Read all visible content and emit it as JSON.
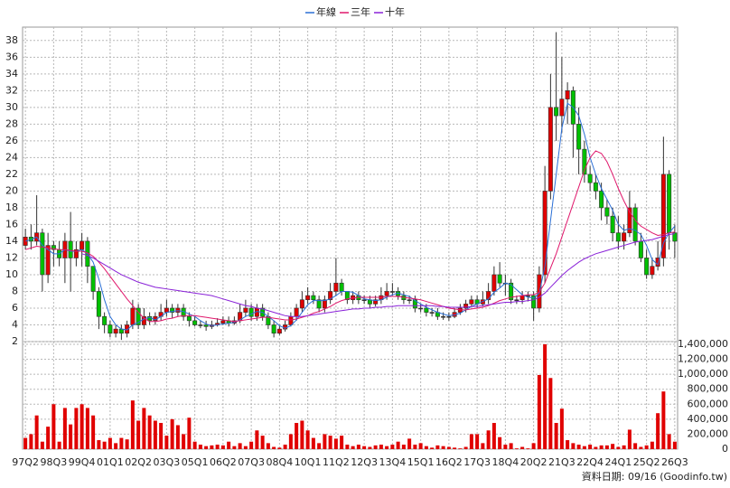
{
  "chart_data": [
    {
      "type": "candlestick",
      "grid": true,
      "legend": "top",
      "up_color": "#e00000",
      "down_color": "#00c000",
      "ylim": [
        2,
        39.6
      ],
      "yticks": [
        2,
        4,
        6,
        8,
        10,
        12,
        14,
        16,
        18,
        20,
        22,
        24,
        26,
        28,
        30,
        32,
        34,
        36,
        38
      ],
      "open": [
        13.5,
        14.5,
        14,
        15,
        10,
        13.5,
        13,
        12,
        14,
        12,
        13,
        14,
        11,
        8,
        5,
        4,
        3,
        3.5,
        3,
        4,
        6,
        4,
        5,
        4.5,
        5,
        5.5,
        6,
        5.5,
        6,
        5,
        4.5,
        4,
        4,
        3.8,
        4,
        4.2,
        4.5,
        4.2,
        4.5,
        5.5,
        6,
        5,
        6,
        5,
        4,
        3,
        3.5,
        4,
        5,
        6,
        7,
        7.5,
        7,
        6,
        7,
        8,
        9,
        8,
        7,
        7.5,
        7,
        7,
        6.5,
        7,
        7.5,
        8,
        8,
        7.5,
        7,
        7,
        6,
        6,
        5.5,
        5.5,
        5,
        5,
        5,
        5.5,
        6,
        6.5,
        7,
        6.5,
        7,
        8,
        10,
        9,
        9,
        7,
        7,
        7.5,
        7.5,
        6,
        10,
        20,
        30,
        29,
        31,
        32,
        28,
        25,
        22,
        21,
        20,
        18,
        17,
        15,
        14,
        15,
        18,
        14,
        12,
        10,
        11,
        12,
        22,
        15
      ],
      "high": [
        15.5,
        16,
        19.5,
        15.5,
        15,
        14,
        14,
        15,
        17.5,
        14,
        15,
        14.5,
        11,
        8.5,
        5.5,
        4.5,
        4,
        4,
        4.5,
        7,
        6.5,
        6,
        5.5,
        5.5,
        6.5,
        7,
        6.5,
        6.5,
        6.5,
        5.5,
        5,
        4.5,
        4.5,
        4.5,
        4.8,
        5,
        5,
        5,
        6.5,
        7,
        6.5,
        6.5,
        6.5,
        5.5,
        4.5,
        4,
        4.5,
        5.5,
        6.5,
        8,
        8.5,
        8,
        7.5,
        7.5,
        9,
        12,
        9.5,
        8,
        8,
        8,
        7.5,
        7.5,
        7.5,
        8.5,
        9,
        9,
        8.5,
        8,
        7.5,
        7.5,
        6.5,
        6.5,
        6,
        6,
        5.5,
        5.5,
        6,
        6.5,
        7,
        7.5,
        7.5,
        8,
        9,
        11,
        11.5,
        10,
        9.5,
        7.5,
        8,
        8,
        8,
        11,
        23,
        34,
        39,
        36,
        33,
        32.5,
        30,
        26,
        23,
        22,
        21,
        19,
        18,
        17,
        16,
        20,
        18.5,
        15,
        13,
        12,
        14,
        26.5,
        22.5,
        16
      ],
      "low": [
        13,
        13,
        13.5,
        8,
        9,
        11,
        11,
        9,
        8,
        11,
        11,
        9,
        7,
        3.5,
        3,
        2.5,
        2.5,
        2.2,
        2.5,
        3.5,
        3.5,
        3.5,
        4,
        4,
        4.5,
        5,
        4.8,
        5,
        4.5,
        3.8,
        3.8,
        3.6,
        3.3,
        3.5,
        3.8,
        4,
        3.8,
        4,
        4.2,
        5,
        4.5,
        4.5,
        4.5,
        3.5,
        2.5,
        2.8,
        3.2,
        3.8,
        4.5,
        5.5,
        6.5,
        6.5,
        5.5,
        5.5,
        6.5,
        7.5,
        7.5,
        6.5,
        6.5,
        6.5,
        6.5,
        6,
        6.2,
        6.5,
        7,
        7.5,
        7,
        6.5,
        6.5,
        5.5,
        5.5,
        5,
        5,
        4.6,
        4.6,
        4.5,
        4.8,
        5.2,
        5.5,
        6.2,
        6,
        6.2,
        6.5,
        7.5,
        8.5,
        7.5,
        6.5,
        6.5,
        6.5,
        6.8,
        4.5,
        5.5,
        9,
        19,
        26,
        27,
        28,
        24,
        22,
        21,
        20,
        19,
        16.5,
        16,
        14,
        13,
        13,
        14.5,
        13.5,
        11.5,
        9.5,
        9.5,
        10.5,
        11,
        13,
        12
      ],
      "close": [
        14.5,
        14,
        15,
        10,
        13.5,
        13,
        12,
        14,
        12,
        13,
        14,
        11,
        8,
        5,
        4,
        3,
        3.5,
        3,
        4,
        6,
        4,
        5,
        4.5,
        5,
        5.5,
        6,
        5.5,
        6,
        5,
        4.5,
        4,
        4,
        3.8,
        4,
        4.2,
        4.5,
        4.2,
        4.5,
        5.5,
        6,
        5,
        6,
        5,
        4,
        3,
        3.5,
        4,
        5,
        6,
        7,
        7.5,
        7,
        6,
        7,
        8,
        9,
        8,
        7,
        7.5,
        7,
        7,
        6.5,
        7,
        7.5,
        8,
        8,
        7.5,
        7,
        7,
        6,
        6,
        5.5,
        5.5,
        5,
        5,
        5,
        5.5,
        6,
        6.5,
        7,
        6.5,
        7,
        8,
        10,
        9,
        9,
        7,
        7,
        7.5,
        7.5,
        6,
        10,
        20,
        30,
        29,
        31,
        32,
        28,
        25,
        22,
        21,
        20,
        18,
        17,
        15,
        14,
        15,
        18,
        14,
        12,
        10,
        11,
        12,
        22,
        15,
        14
      ],
      "series": [
        {
          "name": "年線",
          "color": "#2a6fd6",
          "values": [
            14,
            14.2,
            14.5,
            13.5,
            13,
            12.5,
            12.5,
            13,
            12.8,
            12.8,
            13,
            12.5,
            11.5,
            9.5,
            7,
            5,
            4,
            3.5,
            3.4,
            4,
            4.3,
            4.7,
            4.9,
            4.6,
            5,
            5.5,
            5.6,
            5.7,
            5.6,
            5.3,
            5,
            4.5,
            4.1,
            3.9,
            4,
            4.1,
            4.2,
            4.3,
            4.6,
            5,
            5.3,
            5.6,
            5.5,
            5,
            4.5,
            3.9,
            3.6,
            3.9,
            4.6,
            5.5,
            6.4,
            6.9,
            6.9,
            6.9,
            7.1,
            7.5,
            8,
            8,
            7.9,
            7.5,
            7.1,
            7,
            6.9,
            7,
            7.3,
            7.6,
            7.8,
            7.6,
            7.4,
            6.9,
            6.5,
            6.1,
            5.8,
            5.5,
            5.3,
            5.1,
            5.2,
            5.4,
            5.8,
            6.2,
            6.5,
            6.8,
            7.1,
            7.9,
            8.4,
            9,
            8.8,
            8.2,
            7.6,
            7.3,
            7.2,
            7.8,
            11,
            16.5,
            22,
            27.5,
            30.5,
            30,
            29,
            26.8,
            24,
            22,
            20.3,
            19,
            17.7,
            16,
            15.3,
            15.5,
            15.3,
            14.8,
            13.5,
            11.8,
            11.2,
            13.8,
            15,
            15.8
          ]
        },
        {
          "name": "三年",
          "color": "#e0186c",
          "values": [
            13,
            13.2,
            13.4,
            13.3,
            13.2,
            13.1,
            13,
            13,
            12.9,
            12.8,
            12.8,
            12.6,
            12.2,
            11.5,
            10.7,
            9.8,
            8.9,
            8,
            7.1,
            6.3,
            5.5,
            4.8,
            4.4,
            4.4,
            4.5,
            4.7,
            4.8,
            5,
            5.1,
            5.1,
            5.1,
            5,
            4.9,
            4.8,
            4.7,
            4.6,
            4.5,
            4.4,
            4.5,
            4.6,
            4.7,
            4.8,
            4.9,
            4.9,
            4.8,
            4.7,
            4.6,
            4.6,
            4.7,
            4.9,
            5.1,
            5.4,
            5.6,
            5.9,
            6.2,
            6.6,
            6.9,
            7.1,
            7.2,
            7.3,
            7.3,
            7.3,
            7.3,
            7.3,
            7.4,
            7.4,
            7.4,
            7.3,
            7.2,
            7.1,
            7,
            6.8,
            6.6,
            6.4,
            6.2,
            6,
            5.9,
            5.8,
            5.8,
            5.9,
            6,
            6.1,
            6.3,
            6.6,
            6.9,
            7.1,
            7.3,
            7.4,
            7.5,
            7.6,
            7.6,
            7.9,
            9,
            10.8,
            12.5,
            14.5,
            16.5,
            18.5,
            20.5,
            22.5,
            24,
            24.8,
            24.5,
            23.5,
            22,
            20.3,
            18.8,
            17.5,
            16.5,
            15.8,
            15.4,
            15,
            14.7,
            14.8,
            15,
            15.1
          ]
        },
        {
          "name": "十年",
          "color": "#8a22d8",
          "values": [
            null,
            null,
            null,
            null,
            null,
            null,
            null,
            null,
            null,
            null,
            12.5,
            12.3,
            12,
            11.6,
            11.2,
            10.8,
            10.4,
            10,
            9.7,
            9.4,
            9.1,
            8.9,
            8.7,
            8.5,
            8.4,
            8.3,
            8.2,
            8.1,
            8,
            7.9,
            7.8,
            7.7,
            7.6,
            7.5,
            7.3,
            7.1,
            6.9,
            6.7,
            6.5,
            6.3,
            6.2,
            6,
            5.9,
            5.7,
            5.5,
            5.3,
            5.1,
            5,
            5,
            5,
            5.1,
            5.2,
            5.3,
            5.4,
            5.5,
            5.6,
            5.7,
            5.8,
            5.9,
            5.9,
            6,
            6,
            6.1,
            6.1,
            6.2,
            6.2,
            6.3,
            6.3,
            6.3,
            6.3,
            6.3,
            6.3,
            6.3,
            6.2,
            6.2,
            6.1,
            6.1,
            6.1,
            6.1,
            6.2,
            6.2,
            6.3,
            6.4,
            6.5,
            6.6,
            6.7,
            6.7,
            6.8,
            6.8,
            6.9,
            7,
            7.3,
            7.8,
            8.5,
            9.2,
            9.9,
            10.5,
            11,
            11.5,
            11.9,
            12.2,
            12.5,
            12.7,
            12.9,
            13.1,
            13.3,
            13.5,
            13.7,
            13.9,
            14,
            14.1,
            14.2,
            14.4,
            14.6,
            14.8,
            14.9
          ]
        }
      ]
    },
    {
      "type": "bar",
      "grid": true,
      "color": "#e00000",
      "categories": [
        "97Q2",
        null,
        null,
        null,
        null,
        "98Q3",
        null,
        null,
        null,
        null,
        "99Q4",
        null,
        null,
        null,
        null,
        "01Q1",
        null,
        null,
        null,
        null,
        "02Q2",
        null,
        null,
        null,
        null,
        "03Q3",
        null,
        null,
        null,
        null,
        "05Q1",
        null,
        null,
        null,
        null,
        "06Q2",
        null,
        null,
        null,
        null,
        "07Q3",
        null,
        null,
        null,
        null,
        "08Q4",
        null,
        null,
        null,
        null,
        "10Q1",
        null,
        null,
        null,
        null,
        "11Q2",
        null,
        null,
        null,
        null,
        "12Q3",
        null,
        null,
        null,
        null,
        "13Q4",
        null,
        null,
        null,
        null,
        "15Q1",
        null,
        null,
        null,
        null,
        "16Q2",
        null,
        null,
        null,
        null,
        "17Q3",
        null,
        null,
        null,
        null,
        "18Q4",
        null,
        null,
        null,
        null,
        "20Q2",
        null,
        null,
        null,
        null,
        "21Q3",
        null,
        null,
        null,
        null,
        "22Q4",
        null,
        null,
        null,
        null,
        "24Q1",
        null,
        null,
        null,
        null,
        "25Q2",
        null,
        null,
        null,
        null,
        "26Q3"
      ],
      "values": [
        150000,
        200000,
        450000,
        100000,
        300000,
        600000,
        100000,
        550000,
        330000,
        550000,
        600000,
        550000,
        450000,
        120000,
        100000,
        150000,
        80000,
        150000,
        130000,
        650000,
        380000,
        550000,
        450000,
        380000,
        350000,
        180000,
        400000,
        320000,
        200000,
        420000,
        100000,
        60000,
        40000,
        50000,
        60000,
        50000,
        100000,
        40000,
        80000,
        40000,
        100000,
        250000,
        180000,
        80000,
        30000,
        20000,
        60000,
        200000,
        350000,
        380000,
        250000,
        150000,
        80000,
        200000,
        180000,
        140000,
        180000,
        60000,
        40000,
        60000,
        40000,
        30000,
        50000,
        60000,
        40000,
        60000,
        100000,
        60000,
        140000,
        60000,
        80000,
        40000,
        20000,
        50000,
        40000,
        30000,
        20000,
        10000,
        30000,
        200000,
        200000,
        80000,
        250000,
        350000,
        160000,
        60000,
        80000,
        10000,
        30000,
        10000,
        80000,
        990000,
        1400000,
        950000,
        350000,
        540000,
        120000,
        80000,
        60000,
        40000,
        60000,
        30000,
        50000,
        50000,
        70000,
        30000,
        50000,
        260000,
        80000,
        30000,
        50000,
        100000,
        480000,
        770000,
        200000,
        100000
      ],
      "ylim": [
        0,
        1436000
      ],
      "yticks": [
        0,
        {
          "value": 200000,
          "label": "200,000"
        },
        {
          "value": 400000,
          "label": "400,000"
        },
        {
          "value": 600000,
          "label": "600,000"
        },
        {
          "value": 800000,
          "label": "800,000"
        },
        {
          "value": 1000000,
          "label": "1,000,000"
        },
        {
          "value": 1200000,
          "label": "1,200,000"
        },
        {
          "value": 1400000,
          "label": "1,400,000"
        }
      ]
    }
  ],
  "footer": "資料日期: 09/16 (Goodinfo.tw)"
}
